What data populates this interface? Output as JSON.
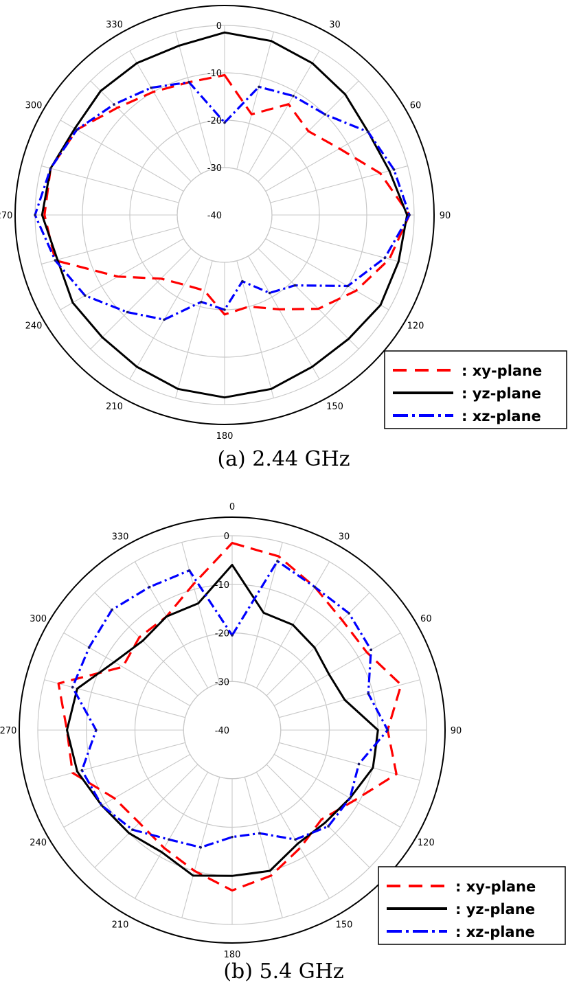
{
  "chart_data": [
    {
      "type": "polar-line",
      "caption": "(a)  2.44  GHz",
      "radial_ticks": [
        0,
        -10,
        -20,
        -30,
        -40
      ],
      "radial_range": [
        -40,
        0
      ],
      "angle_ticks": [
        "0",
        "30",
        "60",
        "90",
        "120",
        "150",
        "180",
        "210",
        "240",
        "270",
        "300",
        "330"
      ],
      "angles": [
        0,
        15,
        30,
        45,
        60,
        75,
        90,
        105,
        120,
        135,
        150,
        165,
        180,
        195,
        210,
        225,
        240,
        255,
        270,
        285,
        300,
        315,
        330,
        345
      ],
      "grid": true,
      "legend_position": "bottom-right",
      "series": [
        {
          "name": ": xy-plane",
          "style": "dashed",
          "color": "#ff0000",
          "values": [
            -10.5,
            -18,
            -13,
            -15,
            -12,
            -6,
            -1,
            -4,
            -8,
            -12,
            -17,
            -20,
            -19,
            -23.5,
            -23,
            -21,
            -14,
            -3,
            -2,
            -2,
            -4,
            -8,
            -10,
            -11
          ]
        },
        {
          "name": ": yz-plane",
          "style": "solid",
          "color": "#000000",
          "values": [
            -1.5,
            -2,
            -3,
            -4,
            -5,
            -4,
            -1.5,
            -2,
            -2,
            -3,
            -3,
            -2,
            -1.5,
            -2,
            -3,
            -3.5,
            -3,
            -3.5,
            -1.5,
            -2,
            -3.5,
            -3,
            -3,
            -3
          ]
        },
        {
          "name": ": xz-plane",
          "style": "dashdot",
          "color": "#0000ff",
          "values": [
            -20.5,
            -12,
            -11,
            -10,
            -5,
            -3,
            -1,
            -5,
            -10,
            -19,
            -21,
            -25.5,
            -20,
            -21,
            -14.5,
            -11,
            -6,
            -3,
            0,
            -2,
            -4,
            -7,
            -9,
            -11
          ]
        }
      ]
    },
    {
      "type": "polar-line",
      "caption": "(b)  5.4  GHz",
      "radial_ticks": [
        0,
        -10,
        -20,
        -30,
        -40
      ],
      "radial_range": [
        -40,
        0
      ],
      "angle_ticks": [
        "0",
        "30",
        "60",
        "90",
        "120",
        "150",
        "180",
        "210",
        "240",
        "270",
        "300",
        "330"
      ],
      "angles": [
        0,
        15,
        30,
        45,
        60,
        75,
        90,
        105,
        120,
        135,
        150,
        165,
        180,
        195,
        210,
        225,
        240,
        255,
        270,
        285,
        300,
        315,
        330,
        345
      ],
      "grid": true,
      "legend_position": "bottom-right",
      "series": [
        {
          "name": ": xy-plane",
          "style": "dashed",
          "color": "#ff0000",
          "values": [
            -1.5,
            -3,
            -6,
            -8,
            -8,
            -4,
            -8,
            -5,
            -11,
            -14,
            -12,
            -9,
            -7,
            -10,
            -12,
            -13,
            -12,
            -6,
            -6,
            -3,
            -14,
            -13,
            -13,
            -9
          ]
        },
        {
          "name": ": yz-plane",
          "style": "solid",
          "color": "#000000",
          "values": [
            -6,
            -15,
            -15,
            -16,
            -17,
            -16,
            -10,
            -10,
            -12,
            -13,
            -13,
            -10,
            -10,
            -9,
            -11,
            -10,
            -9,
            -7,
            -6,
            -7,
            -12,
            -14,
            -13,
            -13
          ]
        },
        {
          "name": ": xz-plane",
          "style": "dashdot",
          "color": "#0000ff",
          "values": [
            -20.5,
            -4,
            -6,
            -6,
            -7,
            -11,
            -8,
            -13,
            -12,
            -12,
            -14,
            -18,
            -18,
            -15,
            -14,
            -11,
            -9,
            -8,
            -12,
            -6,
            -6,
            -5,
            -6,
            -6
          ]
        }
      ]
    }
  ]
}
